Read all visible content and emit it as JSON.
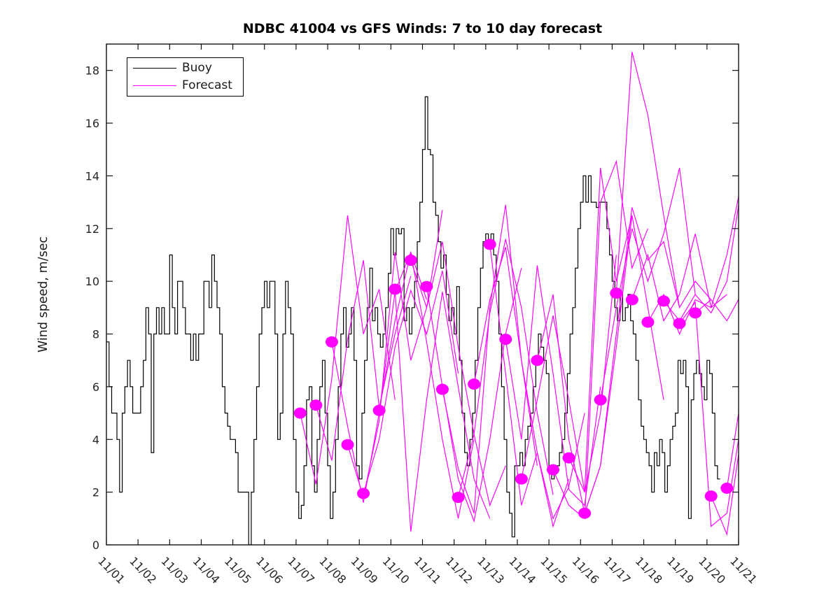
{
  "legend": {
    "items": [
      {
        "label": "Buoy",
        "color": "#000000"
      },
      {
        "label": "Forecast",
        "color": "#ff00ff"
      }
    ]
  },
  "chart_data": {
    "type": "line",
    "title": "NDBC 41004 vs GFS Winds: 7 to 10 day forecast",
    "xlabel": "",
    "ylabel": "Wind speed, m/sec",
    "x_tick_labels": [
      "11/01",
      "11/02",
      "11/03",
      "11/04",
      "11/05",
      "11/06",
      "11/07",
      "11/08",
      "11/09",
      "11/10",
      "11/11",
      "11/12",
      "11/13",
      "11/14",
      "11/15",
      "11/16",
      "11/17",
      "11/18",
      "11/19",
      "11/20",
      "11/21"
    ],
    "y_ticks": [
      0,
      2,
      4,
      6,
      8,
      10,
      12,
      14,
      16,
      18
    ],
    "xlim_days": [
      0,
      20
    ],
    "ylim": [
      0,
      19
    ],
    "grid": false,
    "legend_position": "upper left",
    "series": [
      {
        "name": "Buoy",
        "type": "steps",
        "color": "#000000",
        "start_day": 0.0,
        "step_days": 0.083333,
        "values": [
          7.7,
          6,
          5,
          5,
          4,
          2,
          5,
          6,
          7,
          6,
          5,
          5,
          5,
          6,
          7,
          9,
          8,
          3.5,
          8,
          9,
          8,
          9,
          8,
          8,
          11,
          9,
          8,
          10,
          10,
          9,
          8,
          8,
          7,
          8,
          7,
          8,
          8,
          10,
          10,
          9,
          11,
          10,
          9,
          8,
          6,
          5,
          4.5,
          4,
          4,
          3.5,
          2,
          2,
          2,
          2,
          0,
          2,
          4,
          6,
          8,
          9,
          10,
          9,
          10,
          10,
          8,
          4,
          5,
          8,
          10,
          9,
          8,
          4,
          2,
          1,
          1.5,
          3,
          5.5,
          6,
          3,
          2,
          4,
          6,
          7,
          5,
          3,
          1,
          2,
          4,
          6,
          8,
          9,
          7.5,
          8,
          9,
          7,
          3,
          2.5,
          5,
          7,
          9,
          10.5,
          8.5,
          9,
          8,
          7.5,
          8,
          9,
          10.3,
          12,
          11,
          12,
          11.8,
          12,
          8.5,
          9,
          8,
          9,
          10,
          11.5,
          13,
          15,
          17,
          15,
          14.8,
          13,
          12.5,
          11.5,
          10.5,
          11,
          9.5,
          8.5,
          9,
          8,
          9.8,
          7,
          5,
          3.5,
          3,
          4,
          5,
          7,
          9,
          10.5,
          11.5,
          11.8,
          11.5,
          11.8,
          11,
          10,
          8,
          6,
          4,
          2,
          1.2,
          0.3,
          3,
          3,
          3.5,
          3,
          4,
          4.5,
          5,
          6,
          7,
          8,
          7.5,
          7,
          6.5,
          3,
          2.5,
          2.8,
          3,
          3.5,
          4,
          5,
          6.5,
          8,
          9,
          10.5,
          12,
          13,
          14,
          13,
          14,
          13,
          13,
          12.8,
          13,
          13,
          13,
          12,
          11,
          10,
          9,
          8.5,
          9.5,
          8.5,
          9,
          9.5,
          8.5,
          8,
          7,
          5.5,
          4.5,
          4,
          3.5,
          3,
          2,
          3.5,
          3,
          4,
          3.5,
          2,
          3,
          4,
          4.5,
          5,
          7,
          6.5,
          7,
          6,
          1,
          5.5,
          6.5,
          7,
          6.5,
          6,
          5.5,
          7,
          6.5,
          5,
          3,
          2.5
        ]
      },
      {
        "name": "Forecast",
        "type": "multi-line",
        "color": "#ff00ff",
        "marker": "dot-at-first-point",
        "step_days": 0.5,
        "runs": [
          {
            "start_day": 6.13,
            "values": [
              5.0,
              2.3,
              6.3,
              12.5,
              8.0,
              9.7,
              5.5
            ]
          },
          {
            "start_day": 6.63,
            "values": [
              5.3,
              3.2,
              7.8,
              10.8,
              5.2,
              8.0,
              10.2
            ]
          },
          {
            "start_day": 7.13,
            "values": [
              7.7,
              4.5,
              1.6,
              5.0,
              9.6,
              11.1,
              9.3
            ]
          },
          {
            "start_day": 7.63,
            "values": [
              3.8,
              1.8,
              4.7,
              11.1,
              7.0,
              9.0,
              12.7
            ]
          },
          {
            "start_day": 8.13,
            "values": [
              1.95,
              4.0,
              7.5,
              9.65,
              8.0,
              10.4,
              6.5
            ]
          },
          {
            "start_day": 8.63,
            "values": [
              5.1,
              8.5,
              11.1,
              7.7,
              4.0,
              1.0,
              4.0
            ]
          },
          {
            "start_day": 9.13,
            "values": [
              9.7,
              0.5,
              5.5,
              9.6,
              6.0,
              2.5,
              1.0
            ]
          },
          {
            "start_day": 9.63,
            "values": [
              10.8,
              9.0,
              11.5,
              7.5,
              4.2,
              1.5,
              3.0
            ]
          },
          {
            "start_day": 10.13,
            "values": [
              9.8,
              6.0,
              2.5,
              0.9,
              4.0,
              8.0,
              10.5
            ]
          },
          {
            "start_day": 10.63,
            "values": [
              5.9,
              2.9,
              1.2,
              9.0,
              12.9,
              7.0,
              3.0
            ]
          },
          {
            "start_day": 11.13,
            "values": [
              1.8,
              4.2,
              8.8,
              11.6,
              9.0,
              5.0,
              1.9
            ]
          },
          {
            "start_day": 11.63,
            "values": [
              6.1,
              9.3,
              11.3,
              7.0,
              3.5,
              0.7,
              2.5
            ]
          },
          {
            "start_day": 12.13,
            "values": [
              11.4,
              6.5,
              1.5,
              3.5,
              1.0,
              2.2,
              5.0
            ]
          },
          {
            "start_day": 12.63,
            "values": [
              7.8,
              4.0,
              10.6,
              6.5,
              2.1,
              1.5,
              6.0
            ]
          },
          {
            "start_day": 13.13,
            "values": [
              2.5,
              5.5,
              8.7,
              5.5,
              2.0,
              5.0,
              11.0
            ]
          },
          {
            "start_day": 13.63,
            "values": [
              7.0,
              9.5,
              4.0,
              1.2,
              3.0,
              7.5,
              12.5
            ]
          },
          {
            "start_day": 14.13,
            "values": [
              2.85,
              1.5,
              1.0,
              13.0,
              14.55,
              10.5,
              12.0
            ]
          },
          {
            "start_day": 14.63,
            "values": [
              3.3,
              2.0,
              14.3,
              10.0,
              12.5,
              9.0,
              5.5
            ]
          },
          {
            "start_day": 15.13,
            "values": [
              1.2,
              3.0,
              8.0,
              12.8,
              10.8,
              11.5,
              9.0
            ]
          },
          {
            "start_day": 15.63,
            "values": [
              5.5,
              9.0,
              12.0,
              10.0,
              11.8,
              14.3,
              9.5
            ]
          },
          {
            "start_day": 16.13,
            "values": [
              9.55,
              18.7,
              16.3,
              12.5,
              9.0,
              10.0,
              9.3
            ]
          },
          {
            "start_day": 16.63,
            "values": [
              9.3,
              11.0,
              8.5,
              9.5,
              11.8,
              9.0,
              9.5
            ]
          },
          {
            "start_day": 17.13,
            "values": [
              8.45,
              9.5,
              8.0,
              9.3,
              9.0,
              11.0,
              14.0
            ]
          },
          {
            "start_day": 17.63,
            "values": [
              9.25,
              8.5,
              9.5,
              8.8,
              10.0,
              13.9,
              14.0
            ]
          },
          {
            "start_day": 18.13,
            "values": [
              8.4,
              9.2,
              0.7,
              1.2,
              5.0,
              9.3,
              9.5
            ]
          },
          {
            "start_day": 18.63,
            "values": [
              8.8,
              9.3,
              8.5,
              9.6,
              9.0,
              9.4,
              8.8
            ]
          },
          {
            "start_day": 19.13,
            "values": [
              1.85,
              0.4,
              4.5,
              9.0,
              9.5,
              9.2,
              9.0
            ]
          },
          {
            "start_day": 19.63,
            "values": [
              2.15,
              6.0,
              9.0,
              9.0,
              9.0,
              9.0,
              9.0
            ]
          }
        ]
      }
    ]
  }
}
